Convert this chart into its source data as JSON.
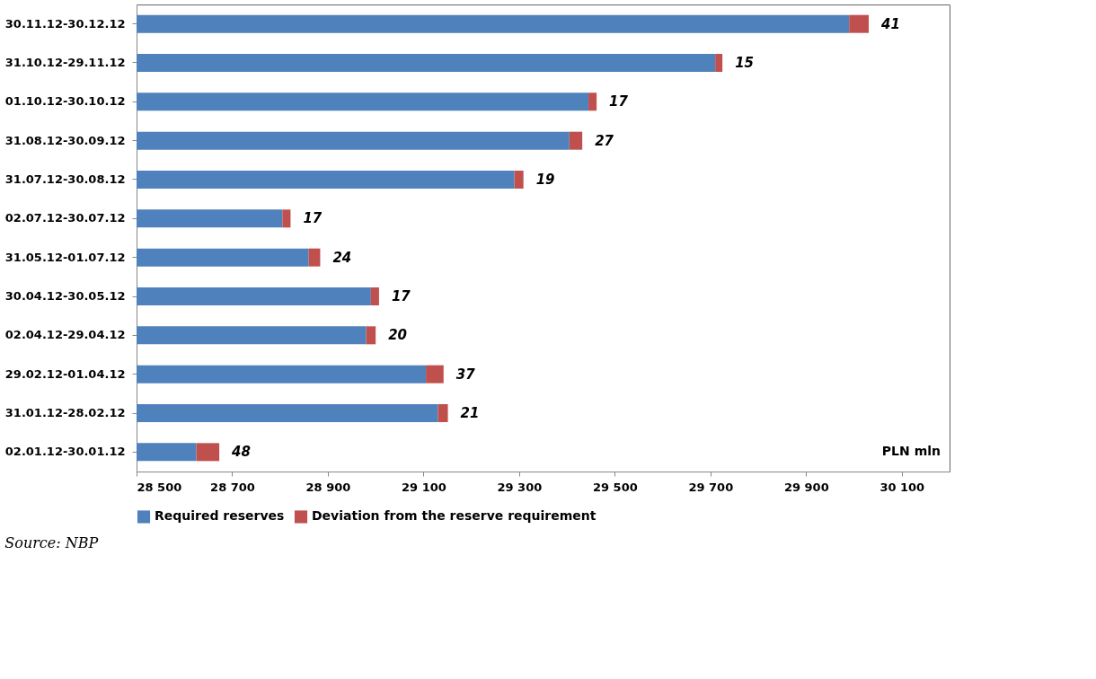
{
  "chart_data": {
    "type": "bar",
    "orientation": "horizontal",
    "stacked": true,
    "categories": [
      "30.11.12-30.12.12",
      "31.10.12-29.11.12",
      "01.10.12-30.10.12",
      "31.08.12-30.09.12",
      "31.07.12-30.08.12",
      "02.07.12-30.07.12",
      "31.05.12-01.07.12",
      "30.04.12-30.05.12",
      "02.04.12-29.04.12",
      "29.02.12-01.04.12",
      "31.01.12-28.02.12",
      "02.01.12-30.01.12"
    ],
    "series": [
      {
        "name": "Required reserves",
        "color": "#4f81bd",
        "values": [
          29990,
          29710,
          29445,
          29405,
          29290,
          28805,
          28860,
          28990,
          28980,
          29105,
          29130,
          28625
        ]
      },
      {
        "name": "Deviation from the reserve requirement",
        "color": "#c0504d",
        "base": [
          29990,
          29710,
          29445,
          29405,
          29290,
          28805,
          28860,
          28990,
          28980,
          29105,
          29130,
          28625
        ],
        "values": [
          41,
          15,
          17,
          27,
          19,
          17,
          24,
          17,
          20,
          37,
          21,
          48
        ],
        "value_labels": [
          "41",
          "15",
          "17",
          "27",
          "19",
          "17",
          "24",
          "17",
          "20",
          "37",
          "21",
          "48"
        ]
      }
    ],
    "xlim": [
      28500,
      30200
    ],
    "xticks": [
      {
        "value": 28500,
        "label": "28 500"
      },
      {
        "value": 28700,
        "label": "28 700"
      },
      {
        "value": 28900,
        "label": "28 900"
      },
      {
        "value": 29100,
        "label": "29 100"
      },
      {
        "value": 29300,
        "label": "29 300"
      },
      {
        "value": 29500,
        "label": "29 500"
      },
      {
        "value": 29700,
        "label": "29 700"
      },
      {
        "value": 29900,
        "label": "29 900"
      },
      {
        "value": 30100,
        "label": "30 100"
      }
    ],
    "grid": false,
    "legend": "bottom",
    "annotations": [
      "PLN mln",
      "Source: NBP"
    ]
  }
}
